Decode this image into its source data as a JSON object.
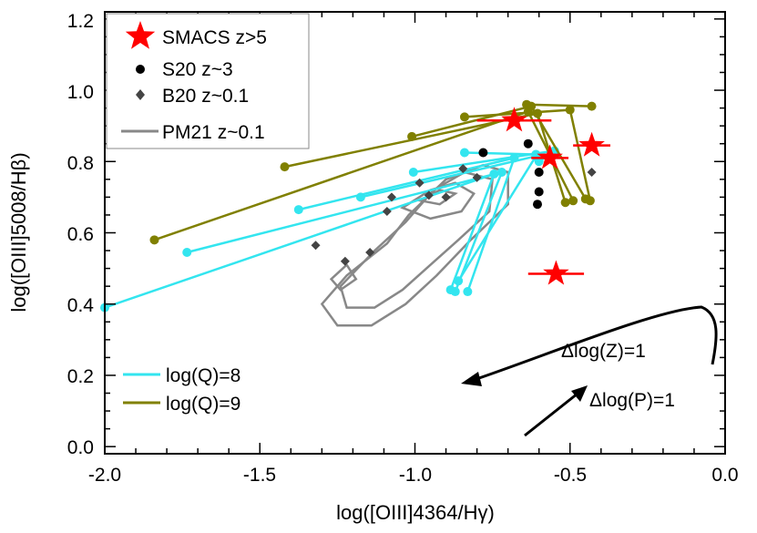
{
  "chart_data": {
    "type": "scatter",
    "title": "",
    "xlabel": "log([OIII]4364/Hγ)",
    "ylabel": "log([OIII]5008/Hβ)",
    "xlim": [
      -2.0,
      0.0
    ],
    "ylim": [
      -0.02,
      1.22
    ],
    "x_ticks": [
      -2.0,
      -1.5,
      -1.0,
      -0.5,
      0.0
    ],
    "x_tick_labels": [
      "-2.0",
      "-1.5",
      "-1.0",
      "-0.5",
      "0.0"
    ],
    "y_ticks": [
      0.0,
      0.2,
      0.4,
      0.6,
      0.8,
      1.0,
      1.2
    ],
    "y_tick_labels": [
      "0.0",
      "0.2",
      "0.4",
      "0.6",
      "0.8",
      "1.0",
      "1.2"
    ],
    "legend": [
      {
        "label": "SMACS z>5",
        "marker": "star",
        "color": "#ff0000"
      },
      {
        "label": "S20 z~3",
        "marker": "circle",
        "color": "#000000"
      },
      {
        "label": "B20 z~0.1",
        "marker": "diamond",
        "color": "#444444"
      },
      {
        "label": "PM21 z~0.1",
        "marker": "line",
        "color": "#888888"
      }
    ],
    "model_legend": [
      {
        "label": "log(Q)=8",
        "color": "#33e5ef"
      },
      {
        "label": "log(Q)=9",
        "color": "#808000"
      }
    ],
    "series": [
      {
        "name": "SMACS z>5",
        "marker": "star",
        "color": "#ff0000",
        "points": [
          {
            "x": -0.68,
            "y": 0.915,
            "xerr": 0.12
          },
          {
            "x": -0.565,
            "y": 0.81,
            "xerr": 0.06
          },
          {
            "x": -0.43,
            "y": 0.845,
            "xerr": 0.06
          },
          {
            "x": -0.545,
            "y": 0.485,
            "xerr": 0.09
          }
        ]
      },
      {
        "name": "S20 z~3",
        "marker": "circle",
        "color": "#000000",
        "points": [
          {
            "x": -0.78,
            "y": 0.825
          },
          {
            "x": -0.635,
            "y": 0.85
          },
          {
            "x": -0.6,
            "y": 0.77
          },
          {
            "x": -0.6,
            "y": 0.715
          },
          {
            "x": -0.605,
            "y": 0.68
          }
        ]
      },
      {
        "name": "B20 z~0.1",
        "marker": "diamond",
        "color": "#444444",
        "points": [
          {
            "x": -1.32,
            "y": 0.565
          },
          {
            "x": -1.225,
            "y": 0.52
          },
          {
            "x": -1.145,
            "y": 0.545
          },
          {
            "x": -1.09,
            "y": 0.66
          },
          {
            "x": -1.075,
            "y": 0.7
          },
          {
            "x": -0.985,
            "y": 0.74
          },
          {
            "x": -0.955,
            "y": 0.705
          },
          {
            "x": -0.9,
            "y": 0.7
          },
          {
            "x": -0.845,
            "y": 0.78
          },
          {
            "x": -0.8,
            "y": 0.755
          },
          {
            "x": -0.43,
            "y": 0.77
          }
        ]
      }
    ],
    "models": [
      {
        "name": "log(Q)=8",
        "color": "#33e5ef",
        "tracks": [
          [
            [
              -2.0,
              0.39
            ],
            [
              -0.745,
              0.765
            ],
            [
              -0.885,
              0.44
            ]
          ],
          [
            [
              -1.735,
              0.545
            ],
            [
              -0.72,
              0.77
            ],
            [
              -0.87,
              0.435
            ]
          ],
          [
            [
              -1.375,
              0.665
            ],
            [
              -0.68,
              0.81
            ],
            [
              -0.83,
              0.435
            ]
          ],
          [
            [
              -1.175,
              0.7
            ],
            [
              -0.61,
              0.815
            ],
            [
              -0.86,
              0.465
            ]
          ],
          [
            [
              -1.005,
              0.77
            ],
            [
              -0.55,
              0.83
            ],
            [
              -0.6,
              0.8
            ]
          ],
          [
            [
              -0.84,
              0.825
            ],
            [
              -0.61,
              0.82
            ]
          ]
        ]
      },
      {
        "name": "log(Q)=9",
        "color": "#808000",
        "tracks": [
          [
            [
              -1.84,
              0.58
            ],
            [
              -0.635,
              0.94
            ],
            [
              -0.49,
              0.69
            ]
          ],
          [
            [
              -1.42,
              0.785
            ],
            [
              -0.605,
              0.935
            ],
            [
              -0.515,
              0.685
            ]
          ],
          [
            [
              -1.01,
              0.87
            ],
            [
              -0.625,
              0.955
            ],
            [
              -0.45,
              0.695
            ]
          ],
          [
            [
              -0.84,
              0.925
            ],
            [
              -0.5,
              0.945
            ],
            [
              -0.435,
              0.69
            ]
          ],
          [
            [
              -0.64,
              0.96
            ],
            [
              -0.43,
              0.955
            ]
          ]
        ]
      }
    ],
    "contours": [
      [
        [
          -1.22,
          0.48
        ],
        [
          -1.09,
          0.57
        ],
        [
          -1.02,
          0.65
        ],
        [
          -0.9,
          0.75
        ],
        [
          -0.78,
          0.79
        ],
        [
          -0.7,
          0.77
        ],
        [
          -0.7,
          0.68
        ],
        [
          -0.82,
          0.58
        ],
        [
          -0.93,
          0.48
        ],
        [
          -1.03,
          0.4
        ],
        [
          -1.14,
          0.34
        ],
        [
          -1.25,
          0.34
        ],
        [
          -1.3,
          0.4
        ]
      ],
      [
        [
          -1.24,
          0.45
        ],
        [
          -1.13,
          0.55
        ],
        [
          -1.03,
          0.63
        ],
        [
          -0.94,
          0.72
        ],
        [
          -0.84,
          0.77
        ],
        [
          -0.75,
          0.75
        ],
        [
          -0.76,
          0.66
        ],
        [
          -0.86,
          0.58
        ],
        [
          -0.95,
          0.51
        ],
        [
          -1.04,
          0.44
        ],
        [
          -1.13,
          0.39
        ],
        [
          -1.22,
          0.39
        ]
      ],
      [
        [
          -1.04,
          0.67
        ],
        [
          -0.95,
          0.72
        ],
        [
          -0.87,
          0.74
        ],
        [
          -0.81,
          0.71
        ],
        [
          -0.85,
          0.66
        ],
        [
          -0.95,
          0.64
        ]
      ],
      [
        [
          -0.98,
          0.69
        ],
        [
          -0.92,
          0.72
        ],
        [
          -0.87,
          0.71
        ],
        [
          -0.92,
          0.68
        ]
      ],
      [
        [
          -1.27,
          0.47
        ],
        [
          -1.22,
          0.51
        ],
        [
          -1.19,
          0.47
        ],
        [
          -1.24,
          0.44
        ]
      ]
    ],
    "annotations": [
      {
        "text": "Δlog(Z)=1",
        "x": -0.32,
        "y": 0.245
      },
      {
        "text": "Δlog(P)=1",
        "x": -0.26,
        "y": 0.125
      }
    ]
  }
}
